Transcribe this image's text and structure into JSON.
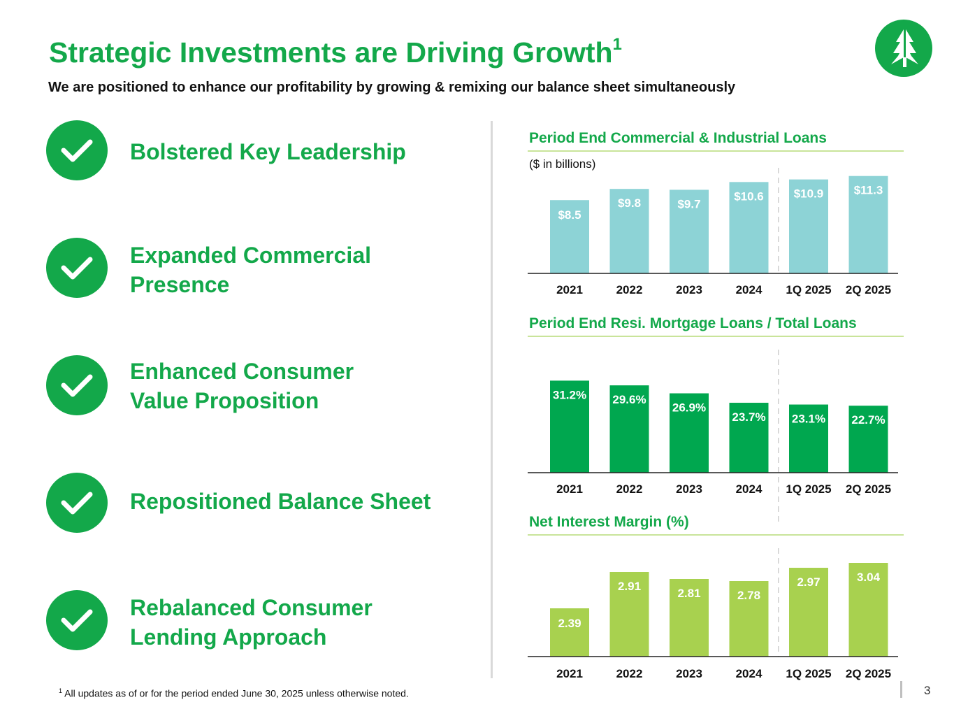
{
  "header": {
    "title": "Strategic Investments are Driving Growth",
    "title_footnote_mark": "1",
    "subtitle": "We are positioned to enhance our profitability by growing & remixing our balance sheet simultaneously"
  },
  "logo": {
    "icon": "tree-logo-icon",
    "color": "#13a84a"
  },
  "achievements": [
    {
      "label": "Bolstered Key Leadership",
      "icon": "checkmark-icon"
    },
    {
      "label": "Expanded Commercial\nPresence",
      "icon": "checkmark-icon"
    },
    {
      "label": "Enhanced Consumer\nValue Proposition",
      "icon": "checkmark-icon"
    },
    {
      "label": "Repositioned Balance Sheet",
      "icon": "checkmark-icon"
    },
    {
      "label": "Rebalanced Consumer\nLending Approach",
      "icon": "checkmark-icon"
    }
  ],
  "colors": {
    "brand_green": "#13a84a",
    "bar_teal": "#8dd3d6",
    "bar_green": "#00a74f",
    "bar_lime": "#a8d14f",
    "rule_green": "#c9e49a"
  },
  "chart_data": [
    {
      "type": "bar",
      "title": "Period End Commercial & Industrial Loans",
      "units_label": "($ in billions)",
      "categories": [
        "2021",
        "2022",
        "2023",
        "2024",
        "1Q 2025",
        "2Q 2025"
      ],
      "values": [
        8.5,
        9.8,
        9.7,
        10.6,
        10.9,
        11.3
      ],
      "data_labels": [
        "$8.5",
        "$9.8",
        "$9.7",
        "$10.6",
        "$10.9",
        "$11.3"
      ],
      "ylim": [
        0,
        11.6
      ],
      "xlabel": "",
      "ylabel": "",
      "annotation": "dashed separator between annual and quarterly periods"
    },
    {
      "type": "bar",
      "title": "Period End Resi. Mortgage Loans / Total Loans",
      "categories": [
        "2021",
        "2022",
        "2023",
        "2024",
        "1Q 2025",
        "2Q 2025"
      ],
      "values": [
        31.2,
        29.6,
        26.9,
        23.7,
        23.1,
        22.7
      ],
      "data_labels": [
        "31.2%",
        "29.6%",
        "26.9%",
        "23.7%",
        "23.1%",
        "22.7%"
      ],
      "ylim": [
        0,
        32
      ],
      "xlabel": "",
      "ylabel": "",
      "annotation": "dashed separator between annual and quarterly periods"
    },
    {
      "type": "bar",
      "title": "Net Interest Margin (%)",
      "categories": [
        "2021",
        "2022",
        "2023",
        "2024",
        "1Q 2025",
        "2Q 2025"
      ],
      "values": [
        2.39,
        2.91,
        2.81,
        2.78,
        2.97,
        3.04
      ],
      "data_labels": [
        "2.39",
        "2.91",
        "2.81",
        "2.78",
        "2.97",
        "3.04"
      ],
      "ylim": [
        1.7,
        3.1
      ],
      "xlabel": "",
      "ylabel": "",
      "annotation": "dashed separator between annual and quarterly periods"
    }
  ],
  "footer": {
    "footnote_mark": "1",
    "footnote": "All updates as of or for the period ended June 30, 2025 unless otherwise noted.",
    "page_number": "3"
  }
}
